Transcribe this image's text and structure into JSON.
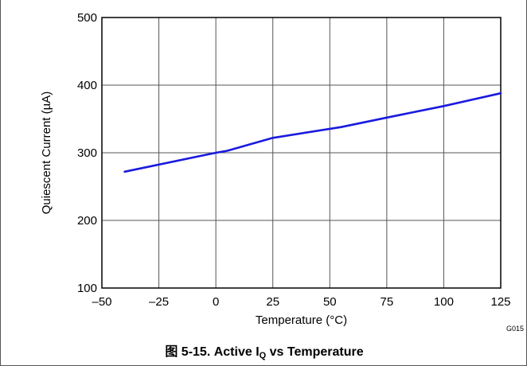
{
  "chart_data": {
    "type": "line",
    "xlabel": "Temperature (°C)",
    "ylabel": "Quiescent Current (µA)",
    "xlim": [
      -50,
      125
    ],
    "ylim": [
      100,
      500
    ],
    "x_ticks": [
      -50,
      -25,
      0,
      25,
      50,
      75,
      100,
      125
    ],
    "x_tick_labels": [
      "–50",
      "–25",
      "0",
      "25",
      "50",
      "75",
      "100",
      "125"
    ],
    "y_ticks": [
      100,
      200,
      300,
      400,
      500
    ],
    "y_tick_labels": [
      "100",
      "200",
      "300",
      "400",
      "500"
    ],
    "grid": true,
    "series": [
      {
        "color": "#1a1adf",
        "x": [
          -40,
          0,
          5,
          25,
          55,
          75,
          100,
          125
        ],
        "y": [
          272,
          300,
          303,
          322,
          338,
          352,
          369,
          388
        ]
      }
    ]
  },
  "figure_code": "G015",
  "caption": {
    "prefix": "图 5-15. Active I",
    "subscript": "Q",
    "suffix": " vs Temperature"
  }
}
